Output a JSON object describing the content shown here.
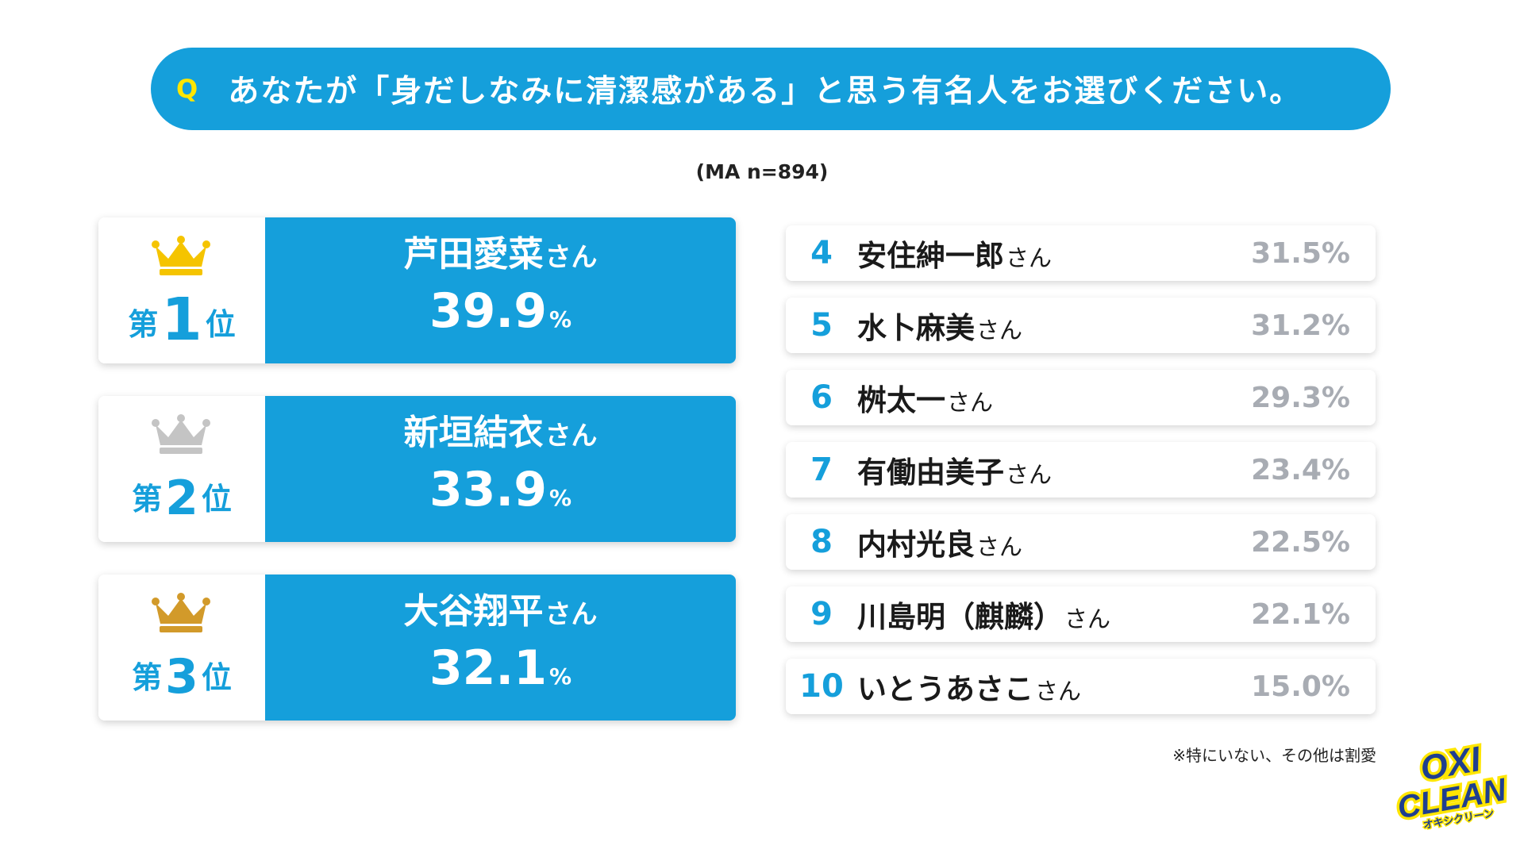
{
  "question": {
    "mark": "Q",
    "text": "あなたが「身だしなみに清潔感がある」と思う有名人をお選びください。"
  },
  "sample_note": "(MA n=894)",
  "footnote": "※特にいない、その他は割愛",
  "logo": {
    "line1": "OXI",
    "line2": "CLEAN",
    "line3": "オキシクリーン"
  },
  "colors": {
    "accent": "#159fdb",
    "gold": "#f5c400",
    "silver": "#c4c4c4",
    "bronze": "#d29a2a",
    "percent_gray": "#a8acb3",
    "q_mark": "#ffe600"
  },
  "chart_data": {
    "type": "table",
    "unit": "%",
    "name_suffix": "さん",
    "top3": [
      {
        "rank_prefix": "第",
        "rank": "1",
        "rank_suffix": "位",
        "crown": "gold-crown-icon",
        "name": "芦田愛菜",
        "value": "39.9"
      },
      {
        "rank_prefix": "第",
        "rank": "2",
        "rank_suffix": "位",
        "crown": "silver-crown-icon",
        "name": "新垣結衣",
        "value": "33.9"
      },
      {
        "rank_prefix": "第",
        "rank": "3",
        "rank_suffix": "位",
        "crown": "bronze-crown-icon",
        "name": "大谷翔平",
        "value": "32.1"
      }
    ],
    "rest": [
      {
        "rank": "4",
        "name": "安住紳一郎",
        "value": "31.5%"
      },
      {
        "rank": "5",
        "name": "水卜麻美",
        "value": "31.2%"
      },
      {
        "rank": "6",
        "name": "桝太一",
        "value": "29.3%"
      },
      {
        "rank": "7",
        "name": "有働由美子",
        "value": "23.4%"
      },
      {
        "rank": "8",
        "name": "内村光良",
        "value": "22.5%"
      },
      {
        "rank": "9",
        "name": "川島明（麒麟）",
        "value": "22.1%"
      },
      {
        "rank": "10",
        "name": "いとうあさこ",
        "value": "15.0%"
      }
    ]
  }
}
